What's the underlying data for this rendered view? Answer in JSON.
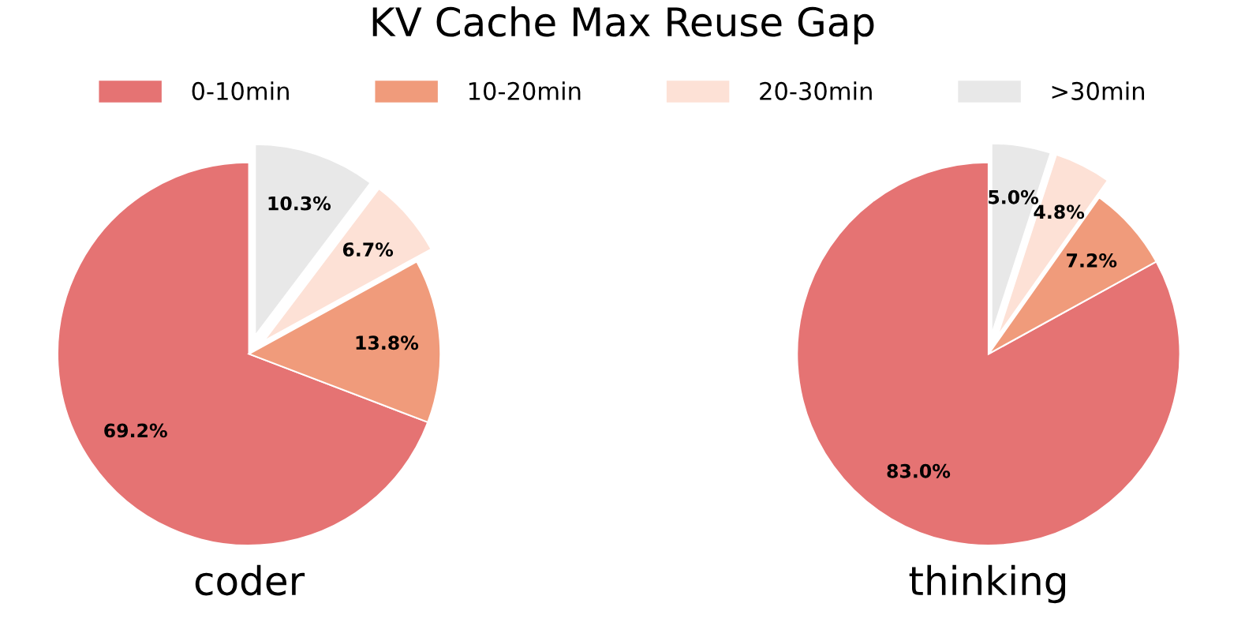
{
  "chart_data": [
    {
      "type": "pie",
      "title": "KV Cache Max Reuse Gap",
      "xlabel": "coder",
      "legend": "top",
      "categories": [
        "0-10min",
        "10-20min",
        "20-30min",
        ">30min"
      ],
      "values": [
        69.2,
        13.8,
        6.7,
        10.3
      ],
      "value_labels": [
        "69.2%",
        "13.8%",
        "6.7%",
        "10.3%"
      ],
      "colors": [
        "#e57373",
        "#f09b7b",
        "#fde1d6",
        "#e8e8e8"
      ]
    },
    {
      "type": "pie",
      "xlabel": "thinking",
      "categories": [
        null,
        null,
        null,
        null
      ],
      "values": [
        83.0,
        7.2,
        4.8,
        5.0
      ],
      "value_labels": [
        "83.0%",
        "7.2%",
        "4.8%",
        "5.0%"
      ],
      "colors": [
        "#e57373",
        "#f09b7b",
        "#fde1d6",
        "#e8e8e8"
      ]
    }
  ]
}
